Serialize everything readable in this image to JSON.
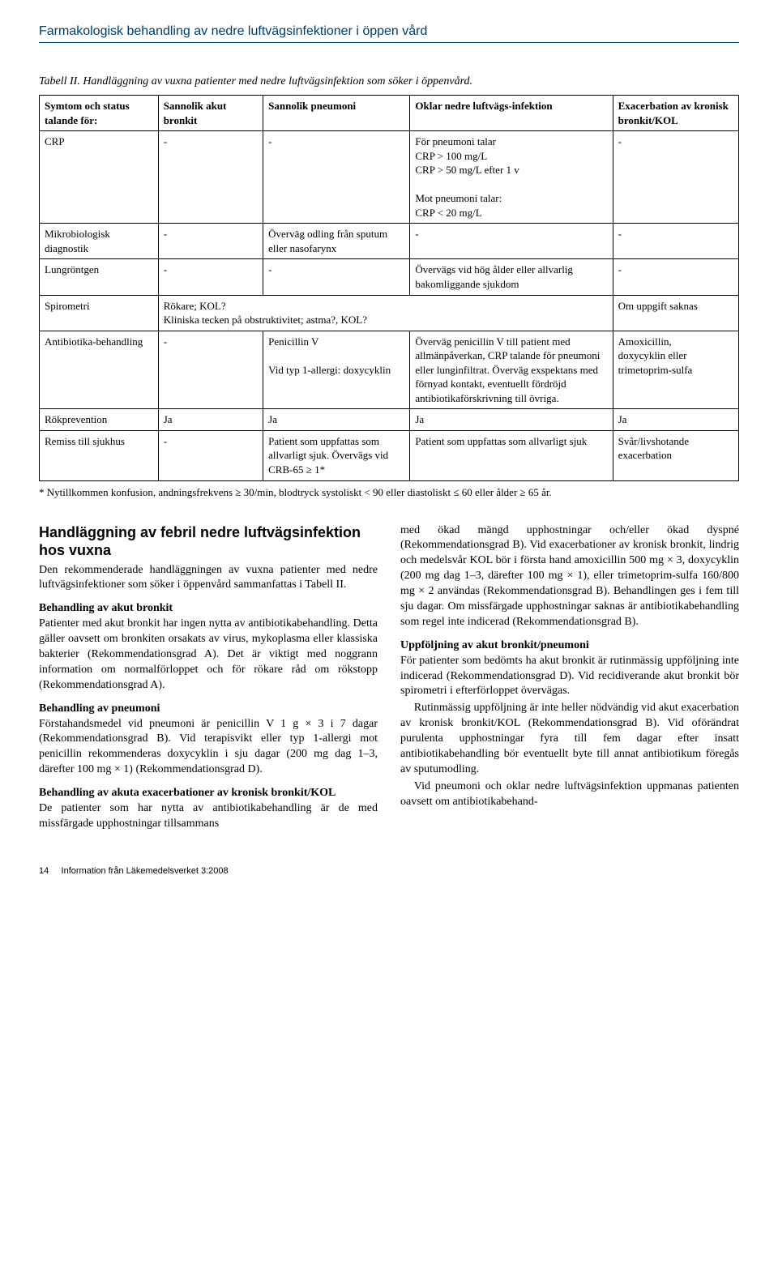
{
  "doc_title": "Farmakologisk behandling av nedre luftvägsinfektioner i öppen vård",
  "table": {
    "caption": "Tabell II. Handläggning av vuxna patienter med nedre luftvägsinfektion som söker i öppenvård.",
    "headers": [
      "Symtom och status talande för:",
      "Sannolik akut bronkit",
      "Sannolik pneumoni",
      "Oklar nedre luftvägs-infektion",
      "Exacerbation av kronisk bronkit/KOL"
    ],
    "rows": [
      {
        "c0": "CRP",
        "c1": "-",
        "c2": "-",
        "c3": "För pneumoni talar\nCRP > 100 mg/L\nCRP > 50 mg/L efter 1 v\n\nMot pneumoni talar:\nCRP < 20 mg/L",
        "c4": "-"
      },
      {
        "c0": "Mikrobiologisk diagnostik",
        "c1": "-",
        "c2": "Överväg odling från sputum eller nasofarynx",
        "c3": "-",
        "c4": "-"
      },
      {
        "c0": "Lungröntgen",
        "c1": "-",
        "c2": "-",
        "c3": "Övervägs vid hög ålder eller allvarlig bakomliggande sjukdom",
        "c4": "-"
      },
      {
        "c0": "Spirometri",
        "c1_span": "Rökare; KOL?\nKliniska tecken på obstruktivitet; astma?, KOL?",
        "c4": "Om uppgift saknas"
      },
      {
        "c0": "Antibiotika-behandling",
        "c1": "-",
        "c2": "Penicillin V\n\nVid typ 1-allergi: doxycyklin",
        "c3": "Överväg penicillin V till patient med allmänpåverkan, CRP talande för pneumoni eller lunginfiltrat. Överväg exspektans med förnyad kontakt, eventuellt fördröjd antibiotikaförskrivning till övriga.",
        "c4": "Amoxicillin,\ndoxycyklin eller trimetoprim-sulfa"
      },
      {
        "c0": "Rökprevention",
        "c1": "Ja",
        "c2": "Ja",
        "c3": "Ja",
        "c4": "Ja"
      },
      {
        "c0": "Remiss till sjukhus",
        "c1": "-",
        "c2": "Patient som uppfattas som allvarligt sjuk. Övervägs vid CRB-65 ≥ 1*",
        "c3": "Patient som uppfattas som allvarligt sjuk",
        "c4": "Svår/livshotande exacerbation"
      }
    ],
    "footnote": "* Nytillkommen konfusion, andningsfrekvens ≥ 30/min, blodtryck systoliskt < 90 eller diastoliskt ≤ 60 eller ålder ≥ 65 år."
  },
  "section_heading": "Handläggning av febril nedre luftvägsinfektion hos vuxna",
  "left_column": {
    "p1": "Den rekommenderade handläggningen av vuxna patienter med nedre luftvägsinfektioner som söker i öppenvård sammanfattas i Tabell II.",
    "sub1": "Behandling av akut bronkit",
    "p2": "Patienter med akut bronkit har ingen nytta av antibiotikabehandling. Detta gäller oavsett om bronkiten orsakats av virus, mykoplasma eller klassiska bakterier (Rekommendationsgrad A). Det är viktigt med noggrann information om normalförloppet och för rökare råd om rökstopp (Rekommendationsgrad A).",
    "sub2": "Behandling av pneumoni",
    "p3": "Förstahandsmedel vid pneumoni är penicillin V 1 g × 3 i 7 dagar (Rekommendationsgrad B). Vid terapisvikt eller typ 1-allergi mot penicillin rekommenderas doxycyklin i sju dagar (200 mg dag 1–3, därefter 100 mg × 1) (Rekommendationsgrad D).",
    "sub3": "Behandling av akuta exacerbationer av kronisk bronkit/KOL",
    "p4": "De patienter som har nytta av antibiotikabehandling är de med missfärgade upphostningar tillsammans"
  },
  "right_column": {
    "p1": "med ökad mängd upphostningar och/eller ökad dyspné (Rekommendationsgrad B). Vid exacerbationer av kronisk bronkit, lindrig och medelsvår KOL bör i första hand amoxicillin 500 mg × 3, doxycyklin (200 mg dag 1–3, därefter 100 mg × 1), eller trimetoprim-sulfa 160/800 mg × 2 användas (Rekommendationsgrad B). Behandlingen ges i fem till sju dagar. Om missfärgade upphostningar saknas är antibiotikabehandling som regel inte indicerad (Rekommendationsgrad B).",
    "sub1": "Uppföljning av akut bronkit/pneumoni",
    "p2": "För patienter som bedömts ha akut bronkit är rutinmässig uppföljning inte indicerad (Rekommendationsgrad D). Vid recidiverande akut bronkit bör spirometri i efterförloppet övervägas.",
    "p3": "Rutinmässig uppföljning är inte heller nödvändig vid akut exacerbation av kronisk bronkit/KOL (Rekommendationsgrad B). Vid oförändrat purulenta upphostningar fyra till fem dagar efter insatt antibiotikabehandling bör eventuellt byte till annat antibiotikum föregås av sputumodling.",
    "p4": "Vid pneumoni och oklar nedre luftvägsinfektion uppmanas patienten oavsett om antibiotikabehand-"
  },
  "footer": {
    "page": "14",
    "label": "Information från Läkemedelsverket 3:2008"
  }
}
